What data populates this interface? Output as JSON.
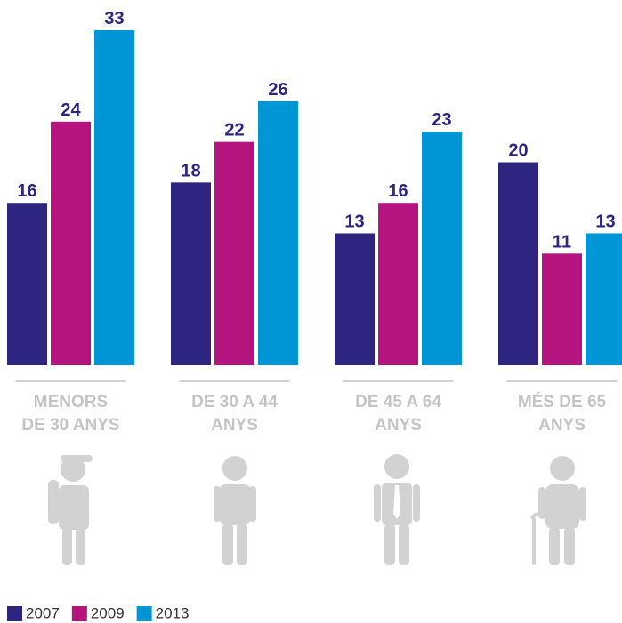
{
  "chart_data": {
    "type": "bar",
    "categories": [
      "MENORS\nDE 30 ANYS",
      "DE 30 A 44\nANYS",
      "DE 45 A 64\nANYS",
      "MÉS DE 65\nANYS"
    ],
    "series": [
      {
        "name": "2007",
        "color": "#2e2580",
        "values": [
          16,
          18,
          13,
          20
        ]
      },
      {
        "name": "2009",
        "color": "#b5137e",
        "values": [
          24,
          22,
          16,
          11
        ]
      },
      {
        "name": "2013",
        "color": "#0096d6",
        "values": [
          33,
          26,
          23,
          13
        ]
      }
    ]
  }
}
